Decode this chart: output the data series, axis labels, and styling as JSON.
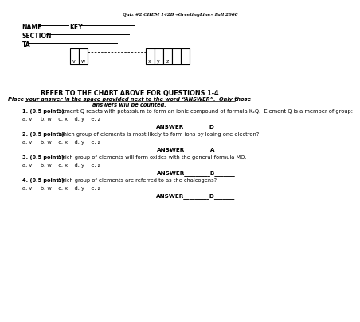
{
  "header": "Quiz #2 CHEM 142B «GreetingLine» Fall 2008",
  "name_label": "NAME",
  "key_label": "KEY",
  "section_label": "SECTION",
  "ta_label": "TA",
  "refer_title": "REFER TO THE CHART ABOVE FOR QUESTIONS 1-4",
  "refer_sub1": "Place your answer in the space provided next to the word “ANSWER”.  Only those",
  "refer_sub2": "answers will be counted.",
  "q1_bold": "1. (0.5 points)",
  "q1_text": " Element Q reacts with potassium to form an ionic compound of formula K₂Q.  Element Q is a member of group:",
  "q1_choices": "a. v     b. w    c. x    d. y    e. z",
  "q1_answer": "ANSWER_________D_______",
  "q2_bold": "2. (0.5 points)",
  "q2_text": "  Which group of elements is most likely to form ions by losing one electron?",
  "q2_choices": "a. v     b. w    c. x    d. y    e. z",
  "q2_answer": "ANSWER_________A_______",
  "q3_bold": "3. (0.5 points)",
  "q3_text": " Which group of elements will form oxides with the general formula MO.",
  "q3_choices": "a. v     b. w    c. x    d. y    e. z",
  "q3_answer": "ANSWER_________B_______",
  "q4_bold": "4. (0.5 points)",
  "q4_text": " Which group of elements are referred to as the chalcogens?",
  "q4_choices": "a. v     b. w    c. x    d. y    e. z",
  "q4_answer": "ANSWER_________D_______",
  "bg_color": "#ffffff",
  "text_color": "#000000",
  "line_color": "#000000",
  "pt_labels_left": [
    "v",
    "w"
  ],
  "pt_labels_right": [
    "x",
    "y",
    "z"
  ]
}
